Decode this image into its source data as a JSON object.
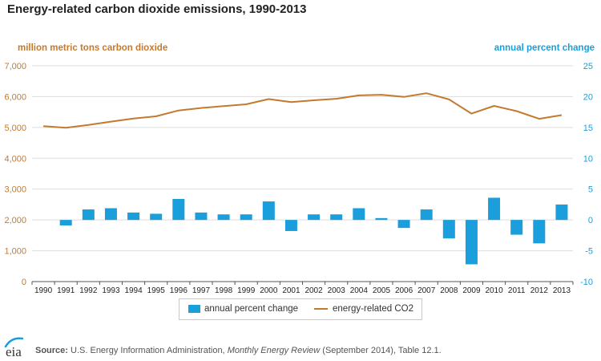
{
  "chart_data": {
    "type": "bar+line",
    "title": "Energy-related carbon dioxide emissions, 1990-2013",
    "left_axis_label": "million metric tons carbon dioxide",
    "right_axis_label": "annual percent change",
    "categories": [
      "1990",
      "1991",
      "1992",
      "1993",
      "1994",
      "1995",
      "1996",
      "1997",
      "1998",
      "1999",
      "2000",
      "2001",
      "2002",
      "2003",
      "2004",
      "2005",
      "2006",
      "2007",
      "2008",
      "2009",
      "2010",
      "2011",
      "2012",
      "2013"
    ],
    "left_ylim": [
      0,
      7000
    ],
    "left_ticks": [
      0,
      1000,
      2000,
      3000,
      4000,
      5000,
      6000,
      7000
    ],
    "left_tick_labels": [
      "0",
      "1,000",
      "2,000",
      "3,000",
      "4,000",
      "5,000",
      "6,000",
      "7,000"
    ],
    "right_ylim": [
      -10,
      25
    ],
    "right_ticks": [
      -10,
      -5,
      0,
      5,
      10,
      15,
      20,
      25
    ],
    "right_tick_labels": [
      "-10",
      "-5",
      "0",
      "5",
      "10",
      "15",
      "20",
      "25"
    ],
    "series": [
      {
        "name": "energy-related CO2",
        "type": "line",
        "axis": "left",
        "color": "#c47a2e",
        "values": [
          5040,
          4990,
          5080,
          5190,
          5290,
          5360,
          5550,
          5630,
          5690,
          5750,
          5920,
          5820,
          5880,
          5930,
          6040,
          6060,
          5990,
          6110,
          5910,
          5450,
          5700,
          5530,
          5280,
          5400
        ]
      },
      {
        "name": "annual percent change",
        "type": "bar",
        "axis": "right",
        "color": "#1a9fdc",
        "values": [
          null,
          -0.9,
          1.7,
          1.9,
          1.2,
          1.0,
          3.4,
          1.2,
          0.9,
          0.9,
          3.0,
          -1.8,
          0.9,
          0.9,
          1.9,
          0.3,
          -1.3,
          1.7,
          -3.0,
          -7.2,
          3.6,
          -2.4,
          -3.8,
          2.5
        ]
      }
    ],
    "legend_position": "bottom"
  },
  "legend": {
    "bar_label": "annual percent change",
    "line_label": "energy-related CO2"
  },
  "footer": {
    "logo_text": "eia",
    "source_label": "Source:",
    "source_text_1": "U.S. Energy Information Administration, ",
    "source_text_italic": "Monthly Energy Review",
    "source_text_2": " (September 2014), Table 12.1."
  },
  "colors": {
    "line": "#c47a2e",
    "bar": "#1a9fdc",
    "grid": "#dddddd",
    "left_axis_text": "#c47a2e",
    "right_axis_text": "#1a9fdc"
  }
}
